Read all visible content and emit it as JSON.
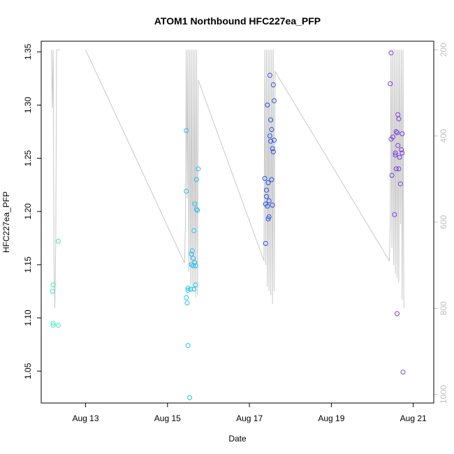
{
  "chart_data": {
    "type": "scatter",
    "title": "ATOM1 Northbound HFC227ea_PFP",
    "xlabel": "Date",
    "ylabel": "HFC227ea_PFP",
    "xlim": [
      "2016-08-11T22:00",
      "2016-08-21T12:00"
    ],
    "ylim": [
      1.02,
      1.36
    ],
    "x_ticks": [
      {
        "label": "Aug 13",
        "value": "2016-08-13T00:00"
      },
      {
        "label": "Aug 15",
        "value": "2016-08-15T00:00"
      },
      {
        "label": "Aug 17",
        "value": "2016-08-17T00:00"
      },
      {
        "label": "Aug 19",
        "value": "2016-08-19T00:00"
      },
      {
        "label": "Aug 21",
        "value": "2016-08-21T00:00"
      }
    ],
    "y_ticks": [
      "1.05",
      "1.10",
      "1.15",
      "1.20",
      "1.25",
      "1.30",
      "1.35"
    ],
    "y2lim": [
      1020,
      180
    ],
    "y2_ticks": [
      "200",
      "400",
      "600",
      "800",
      "1000"
    ],
    "grid": false,
    "legend": "none",
    "series": [
      {
        "color": "#2ef2b8",
        "points": [
          [
            "2016-08-12T05:00",
            1.131
          ],
          [
            "2016-08-12T04:30",
            1.125
          ],
          [
            "2016-08-12T05:00",
            1.095
          ],
          [
            "2016-08-12T05:00",
            1.093
          ],
          [
            "2016-08-12T08:00",
            1.093
          ],
          [
            "2016-08-12T08:00",
            1.172
          ]
        ]
      },
      {
        "color": "#20bff0",
        "points": [
          [
            "2016-08-15T11:00",
            1.276
          ],
          [
            "2016-08-15T11:00",
            1.219
          ],
          [
            "2016-08-15T11:00",
            1.119
          ],
          [
            "2016-08-15T11:30",
            1.114
          ],
          [
            "2016-08-15T12:00",
            1.126
          ],
          [
            "2016-08-15T12:00",
            1.128
          ],
          [
            "2016-08-15T12:00",
            1.074
          ],
          [
            "2016-08-15T13:00",
            1.025
          ],
          [
            "2016-08-15T13:30",
            1.127
          ],
          [
            "2016-08-15T14:00",
            1.15
          ],
          [
            "2016-08-15T14:00",
            1.16
          ],
          [
            "2016-08-15T14:30",
            1.163
          ],
          [
            "2016-08-15T15:00",
            1.149
          ],
          [
            "2016-08-15T15:00",
            1.156
          ],
          [
            "2016-08-15T15:30",
            1.127
          ],
          [
            "2016-08-15T15:30",
            1.182
          ],
          [
            "2016-08-15T16:00",
            1.152
          ],
          [
            "2016-08-15T16:00",
            1.207
          ],
          [
            "2016-08-15T16:30",
            1.131
          ],
          [
            "2016-08-15T16:30",
            1.149
          ],
          [
            "2016-08-15T17:00",
            1.202
          ],
          [
            "2016-08-15T17:00",
            1.23
          ],
          [
            "2016-08-15T17:30",
            1.201
          ],
          [
            "2016-08-15T18:00",
            1.24
          ]
        ]
      },
      {
        "color": "#2550e8",
        "points": [
          [
            "2016-08-17T09:00",
            1.231
          ],
          [
            "2016-08-17T09:30",
            1.207
          ],
          [
            "2016-08-17T09:30",
            1.17
          ],
          [
            "2016-08-17T10:00",
            1.22
          ],
          [
            "2016-08-17T10:00",
            1.214
          ],
          [
            "2016-08-17T10:30",
            1.205
          ],
          [
            "2016-08-17T10:30",
            1.3
          ],
          [
            "2016-08-17T11:00",
            1.227
          ],
          [
            "2016-08-17T11:00",
            1.193
          ],
          [
            "2016-08-17T11:30",
            1.195
          ],
          [
            "2016-08-17T11:30",
            1.21
          ],
          [
            "2016-08-17T12:00",
            1.271
          ],
          [
            "2016-08-17T12:00",
            1.328
          ],
          [
            "2016-08-17T12:30",
            1.266
          ],
          [
            "2016-08-17T12:30",
            1.286
          ],
          [
            "2016-08-17T13:00",
            1.23
          ],
          [
            "2016-08-17T13:00",
            1.277
          ],
          [
            "2016-08-17T13:30",
            1.206
          ],
          [
            "2016-08-17T13:30",
            1.259
          ],
          [
            "2016-08-17T14:00",
            1.319
          ],
          [
            "2016-08-17T14:00",
            1.256
          ],
          [
            "2016-08-17T14:30",
            1.267
          ],
          [
            "2016-08-17T14:30",
            1.304
          ]
        ]
      },
      {
        "color": "#7c3ae0",
        "points": [
          [
            "2016-08-20T10:30",
            1.32
          ],
          [
            "2016-08-20T11:00",
            1.349
          ],
          [
            "2016-08-20T11:00",
            1.268
          ],
          [
            "2016-08-20T11:30",
            1.234
          ],
          [
            "2016-08-20T12:00",
            1.27
          ],
          [
            "2016-08-20T13:00",
            1.197
          ],
          [
            "2016-08-20T13:30",
            1.255
          ],
          [
            "2016-08-20T13:30",
            1.253
          ],
          [
            "2016-08-20T14:00",
            1.24
          ],
          [
            "2016-08-20T14:00",
            1.275
          ],
          [
            "2016-08-20T14:30",
            1.104
          ],
          [
            "2016-08-20T14:30",
            1.274
          ],
          [
            "2016-08-20T15:00",
            1.291
          ],
          [
            "2016-08-20T15:00",
            1.262
          ],
          [
            "2016-08-20T15:30",
            1.24
          ],
          [
            "2016-08-20T15:30",
            1.287
          ],
          [
            "2016-08-20T16:00",
            1.251
          ],
          [
            "2016-08-20T16:30",
            1.226
          ],
          [
            "2016-08-20T17:00",
            1.258
          ],
          [
            "2016-08-20T17:30",
            1.273
          ],
          [
            "2016-08-20T17:30",
            1.255
          ],
          [
            "2016-08-20T18:00",
            1.049
          ]
        ]
      }
    ],
    "altitude_trace": {
      "color": "#c8c8c8",
      "axis": "right",
      "groups": [
        [
          [
            "2016-08-12T04:00",
            200
          ],
          [
            "2016-08-12T04:30",
            335
          ],
          [
            "2016-08-12T05:00",
            200
          ],
          [
            "2016-08-12T05:30",
            700
          ],
          [
            "2016-08-12T06:00",
            800
          ],
          [
            "2016-08-12T06:30",
            650
          ],
          [
            "2016-08-12T07:00",
            200
          ],
          [
            "2016-08-12T07:30",
            200
          ],
          [
            "2016-08-12T08:00",
            200
          ],
          [
            "2016-08-12T08:30",
            200
          ],
          [
            "2016-08-12T09:00",
            200
          ]
        ],
        [
          [
            "2016-08-13T00:00",
            200
          ],
          [
            "2016-08-15T10:00",
            695
          ],
          [
            "2016-08-15T10:30",
            600
          ],
          [
            "2016-08-15T11:00",
            200
          ],
          [
            "2016-08-15T11:30",
            545
          ],
          [
            "2016-08-15T12:00",
            200
          ],
          [
            "2016-08-15T12:30",
            715
          ],
          [
            "2016-08-15T13:00",
            200
          ],
          [
            "2016-08-15T13:30",
            745
          ],
          [
            "2016-08-15T14:00",
            200
          ],
          [
            "2016-08-15T14:30",
            755
          ],
          [
            "2016-08-15T15:00",
            200
          ],
          [
            "2016-08-15T15:30",
            760
          ],
          [
            "2016-08-15T16:00",
            200
          ],
          [
            "2016-08-15T16:30",
            775
          ],
          [
            "2016-08-15T17:00",
            200
          ],
          [
            "2016-08-15T17:30",
            770
          ],
          [
            "2016-08-15T18:00",
            270
          ]
        ],
        [
          [
            "2016-08-15T18:00",
            270
          ],
          [
            "2016-08-17T08:30",
            690
          ],
          [
            "2016-08-17T09:00",
            200
          ],
          [
            "2016-08-17T09:30",
            700
          ],
          [
            "2016-08-17T10:00",
            200
          ],
          [
            "2016-08-17T10:30",
            750
          ],
          [
            "2016-08-17T11:00",
            200
          ],
          [
            "2016-08-17T11:30",
            760
          ],
          [
            "2016-08-17T12:00",
            200
          ],
          [
            "2016-08-17T12:30",
            770
          ],
          [
            "2016-08-17T13:00",
            200
          ],
          [
            "2016-08-17T13:30",
            790
          ],
          [
            "2016-08-17T14:00",
            200
          ],
          [
            "2016-08-17T14:30",
            760
          ],
          [
            "2016-08-17T15:00",
            250
          ]
        ],
        [
          [
            "2016-08-17T15:00",
            250
          ],
          [
            "2016-08-20T10:00",
            690
          ],
          [
            "2016-08-20T10:30",
            600
          ],
          [
            "2016-08-20T11:00",
            200
          ],
          [
            "2016-08-20T11:30",
            660
          ],
          [
            "2016-08-20T12:00",
            200
          ],
          [
            "2016-08-20T12:30",
            700
          ],
          [
            "2016-08-20T13:00",
            200
          ],
          [
            "2016-08-20T13:30",
            720
          ],
          [
            "2016-08-20T14:00",
            200
          ],
          [
            "2016-08-20T14:30",
            730
          ],
          [
            "2016-08-20T15:00",
            200
          ],
          [
            "2016-08-20T15:30",
            740
          ],
          [
            "2016-08-20T16:00",
            200
          ],
          [
            "2016-08-20T16:30",
            605
          ],
          [
            "2016-08-20T17:00",
            200
          ],
          [
            "2016-08-20T17:30",
            780
          ],
          [
            "2016-08-20T18:00",
            200
          ],
          [
            "2016-08-20T18:30",
            800
          ]
        ]
      ]
    }
  }
}
